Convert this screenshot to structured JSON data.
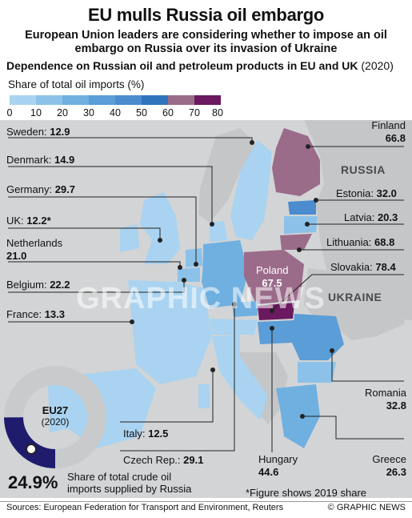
{
  "header": {
    "title": "EU mulls Russia oil embargo",
    "subtitle": "European Union leaders are considering whether to impose an oil embargo on Russia over its invasion of Ukraine",
    "dependence_title": "Dependence on Russian oil and petroleum products in EU and UK",
    "dependence_year": "(2020)"
  },
  "legend": {
    "title": "Share of total oil imports (%)",
    "ticks": [
      "0",
      "10",
      "20",
      "30",
      "40",
      "50",
      "60",
      "70",
      "80"
    ],
    "colors": [
      "#a9d3f0",
      "#8cc2ea",
      "#6fb0e1",
      "#5a9dd7",
      "#4a8ccd",
      "#2f73bd",
      "#9b6b8a",
      "#6b1a5f"
    ]
  },
  "map_colors": {
    "sea": "#d2d4d6",
    "non_eu": "#c4c6c8",
    "ukraine": "#c4c6c8",
    "russia": "#c4c6c8"
  },
  "regions": {
    "russia": "RUSSIA",
    "ukraine": "UKRAINE"
  },
  "countries": {
    "sweden": {
      "name": "Sweden:",
      "value": "12.9"
    },
    "denmark": {
      "name": "Denmark:",
      "value": "14.9"
    },
    "germany": {
      "name": "Germany:",
      "value": "29.7"
    },
    "uk": {
      "name": "UK:",
      "value": "12.2*"
    },
    "netherlands": {
      "name": "Netherlands",
      "value": "21.0"
    },
    "belgium": {
      "name": "Belgium:",
      "value": "22.2"
    },
    "france": {
      "name": "France:",
      "value": "13.3"
    },
    "finland": {
      "name": "Finland",
      "value": "66.8"
    },
    "estonia": {
      "name": "Estonia:",
      "value": "32.0"
    },
    "latvia": {
      "name": "Latvia:",
      "value": "20.3"
    },
    "lithuania": {
      "name": "Lithuania:",
      "value": "68.8"
    },
    "poland": {
      "name": "Poland",
      "value": "67.5"
    },
    "slovakia": {
      "name": "Slovakia:",
      "value": "78.4"
    },
    "romania": {
      "name": "Romania",
      "value": "32.8"
    },
    "italy": {
      "name": "Italy:",
      "value": "12.5"
    },
    "czech": {
      "name": "Czech Rep.:",
      "value": "29.1"
    },
    "hungary": {
      "name": "Hungary",
      "value": "44.6"
    },
    "greece": {
      "name": "Greece",
      "value": "26.3"
    }
  },
  "eu27": {
    "label": "EU27",
    "year": "(2020)",
    "share_value": 24.9,
    "share_text": "24.9%",
    "share_description": "Share of total crude oil imports supplied by Russia"
  },
  "footnote": "*Figure shows 2019 share",
  "footer": {
    "source": "Sources: European Federation for Transport and Environment, Reuters",
    "credit": "© GRAPHIC NEWS"
  },
  "watermark": "GRAPHIC NEWS"
}
